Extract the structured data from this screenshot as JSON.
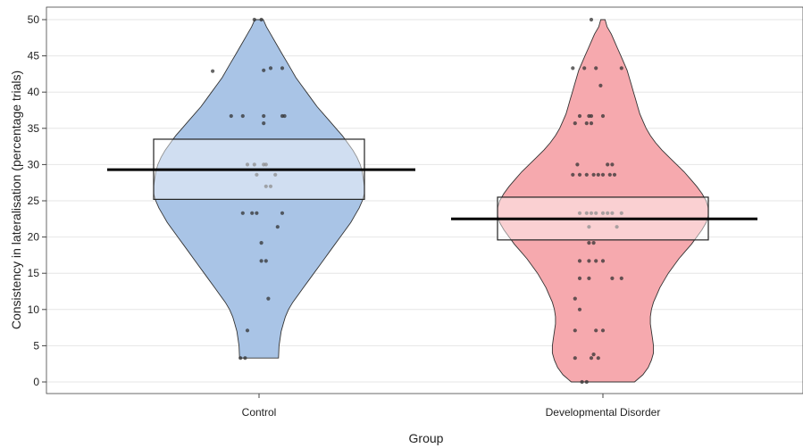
{
  "chart_data": {
    "type": "violin",
    "title": "",
    "xlabel": "Group",
    "ylabel": "Consistency in lateralisation (percentage trials)",
    "ylim": [
      0,
      50
    ],
    "yticks": [
      0,
      5,
      10,
      15,
      20,
      25,
      30,
      35,
      40,
      45,
      50
    ],
    "grid": "horizontal",
    "categories": [
      "Control",
      "Developmental Disorder"
    ],
    "groups": [
      {
        "name": "Control",
        "color": "#a9c4e6",
        "mean": 29.3,
        "box_low": 25.2,
        "box_high": 33.5,
        "density_y": [
          3.3,
          5,
          6,
          7,
          8,
          9,
          10,
          11,
          12,
          13,
          14,
          15,
          16,
          17,
          18,
          19,
          20,
          21,
          22,
          23,
          24,
          25,
          26,
          27,
          28,
          29,
          30,
          31,
          32,
          33,
          34,
          35,
          36,
          37,
          38,
          39,
          40,
          41,
          42,
          43,
          44,
          45,
          46,
          47,
          48,
          49,
          50
        ],
        "density_w": [
          0.185,
          0.19,
          0.2,
          0.21,
          0.23,
          0.25,
          0.28,
          0.32,
          0.37,
          0.42,
          0.47,
          0.52,
          0.57,
          0.62,
          0.67,
          0.72,
          0.77,
          0.82,
          0.87,
          0.91,
          0.95,
          0.98,
          1.0,
          1.0,
          0.99,
          0.98,
          0.96,
          0.93,
          0.89,
          0.84,
          0.79,
          0.73,
          0.67,
          0.61,
          0.55,
          0.5,
          0.45,
          0.4,
          0.35,
          0.31,
          0.27,
          0.23,
          0.19,
          0.15,
          0.11,
          0.07,
          0.04
        ],
        "points": [
          {
            "y": 50.0,
            "dx": -0.02
          },
          {
            "y": 50.0,
            "dx": 0.01
          },
          {
            "y": 43.3,
            "dx": 0.1
          },
          {
            "y": 43.3,
            "dx": 0.05
          },
          {
            "y": 43.0,
            "dx": 0.02
          },
          {
            "y": 42.9,
            "dx": -0.2
          },
          {
            "y": 36.7,
            "dx": -0.12
          },
          {
            "y": 36.7,
            "dx": -0.07
          },
          {
            "y": 36.7,
            "dx": 0.1
          },
          {
            "y": 36.7,
            "dx": 0.11
          },
          {
            "y": 36.7,
            "dx": 0.02
          },
          {
            "y": 35.7,
            "dx": 0.02
          },
          {
            "y": 30.0,
            "dx": -0.05
          },
          {
            "y": 30.0,
            "dx": -0.02
          },
          {
            "y": 30.0,
            "dx": 0.02
          },
          {
            "y": 30.0,
            "dx": 0.03
          },
          {
            "y": 28.6,
            "dx": -0.01
          },
          {
            "y": 28.6,
            "dx": 0.07
          },
          {
            "y": 27.0,
            "dx": 0.03
          },
          {
            "y": 27.0,
            "dx": 0.05
          },
          {
            "y": 23.3,
            "dx": -0.07
          },
          {
            "y": 23.3,
            "dx": -0.03
          },
          {
            "y": 23.3,
            "dx": -0.01
          },
          {
            "y": 23.3,
            "dx": 0.1
          },
          {
            "y": 21.4,
            "dx": 0.08
          },
          {
            "y": 19.2,
            "dx": 0.01
          },
          {
            "y": 16.7,
            "dx": 0.01
          },
          {
            "y": 16.7,
            "dx": 0.03
          },
          {
            "y": 11.5,
            "dx": 0.04
          },
          {
            "y": 7.1,
            "dx": -0.05
          },
          {
            "y": 3.3,
            "dx": -0.08
          },
          {
            "y": 3.3,
            "dx": -0.06
          }
        ]
      },
      {
        "name": "Developmental Disorder",
        "color": "#f6a9ae",
        "mean": 22.5,
        "box_low": 19.6,
        "box_high": 25.5,
        "density_y": [
          0,
          1,
          2,
          3,
          4,
          5,
          6,
          7,
          8,
          9,
          10,
          11,
          12,
          13,
          14,
          15,
          16,
          17,
          18,
          19,
          20,
          21,
          22,
          23,
          24,
          25,
          26,
          27,
          28,
          29,
          30,
          31,
          32,
          33,
          34,
          35,
          36,
          37,
          38,
          39,
          40,
          41,
          42,
          43,
          44,
          45,
          46,
          47,
          48,
          49,
          50
        ],
        "density_w": [
          0.3,
          0.38,
          0.43,
          0.46,
          0.48,
          0.48,
          0.47,
          0.46,
          0.45,
          0.45,
          0.46,
          0.48,
          0.51,
          0.54,
          0.58,
          0.62,
          0.67,
          0.72,
          0.78,
          0.84,
          0.89,
          0.94,
          0.98,
          1.0,
          1.0,
          0.98,
          0.94,
          0.89,
          0.83,
          0.77,
          0.7,
          0.63,
          0.56,
          0.5,
          0.45,
          0.41,
          0.38,
          0.35,
          0.33,
          0.31,
          0.29,
          0.27,
          0.25,
          0.23,
          0.2,
          0.17,
          0.14,
          0.11,
          0.08,
          0.04,
          0.02
        ],
        "points": [
          {
            "y": 50.0,
            "dx": -0.05
          },
          {
            "y": 43.3,
            "dx": -0.13
          },
          {
            "y": 43.3,
            "dx": -0.08
          },
          {
            "y": 43.3,
            "dx": -0.03
          },
          {
            "y": 43.3,
            "dx": 0.08
          },
          {
            "y": 40.9,
            "dx": -0.01
          },
          {
            "y": 36.7,
            "dx": -0.1
          },
          {
            "y": 36.7,
            "dx": -0.06
          },
          {
            "y": 36.7,
            "dx": -0.05
          },
          {
            "y": 36.7,
            "dx": 0.0
          },
          {
            "y": 35.7,
            "dx": -0.12
          },
          {
            "y": 35.7,
            "dx": -0.07
          },
          {
            "y": 35.7,
            "dx": -0.05
          },
          {
            "y": 30.0,
            "dx": -0.11
          },
          {
            "y": 30.0,
            "dx": 0.02
          },
          {
            "y": 30.0,
            "dx": 0.04
          },
          {
            "y": 28.6,
            "dx": -0.13
          },
          {
            "y": 28.6,
            "dx": -0.1
          },
          {
            "y": 28.6,
            "dx": -0.07
          },
          {
            "y": 28.6,
            "dx": -0.04
          },
          {
            "y": 28.6,
            "dx": -0.02
          },
          {
            "y": 28.6,
            "dx": 0.0
          },
          {
            "y": 28.6,
            "dx": 0.03
          },
          {
            "y": 28.6,
            "dx": 0.05
          },
          {
            "y": 23.3,
            "dx": -0.1
          },
          {
            "y": 23.3,
            "dx": -0.07
          },
          {
            "y": 23.3,
            "dx": -0.05
          },
          {
            "y": 23.3,
            "dx": -0.03
          },
          {
            "y": 23.3,
            "dx": 0.0
          },
          {
            "y": 23.3,
            "dx": 0.02
          },
          {
            "y": 23.3,
            "dx": 0.04
          },
          {
            "y": 23.3,
            "dx": 0.08
          },
          {
            "y": 21.4,
            "dx": -0.06
          },
          {
            "y": 21.4,
            "dx": 0.06
          },
          {
            "y": 19.2,
            "dx": -0.06
          },
          {
            "y": 19.2,
            "dx": -0.04
          },
          {
            "y": 16.7,
            "dx": -0.1
          },
          {
            "y": 16.7,
            "dx": -0.06
          },
          {
            "y": 16.7,
            "dx": -0.03
          },
          {
            "y": 16.7,
            "dx": 0.0
          },
          {
            "y": 14.3,
            "dx": -0.1
          },
          {
            "y": 14.3,
            "dx": -0.06
          },
          {
            "y": 14.3,
            "dx": 0.04
          },
          {
            "y": 14.3,
            "dx": 0.08
          },
          {
            "y": 11.5,
            "dx": -0.12
          },
          {
            "y": 10.0,
            "dx": -0.1
          },
          {
            "y": 7.1,
            "dx": -0.12
          },
          {
            "y": 7.1,
            "dx": -0.03
          },
          {
            "y": 7.1,
            "dx": 0.0
          },
          {
            "y": 3.8,
            "dx": -0.04
          },
          {
            "y": 3.3,
            "dx": -0.12
          },
          {
            "y": 3.3,
            "dx": -0.05
          },
          {
            "y": 3.3,
            "dx": -0.02
          },
          {
            "y": 0.0,
            "dx": -0.09
          },
          {
            "y": 0.0,
            "dx": -0.07
          }
        ]
      }
    ]
  }
}
